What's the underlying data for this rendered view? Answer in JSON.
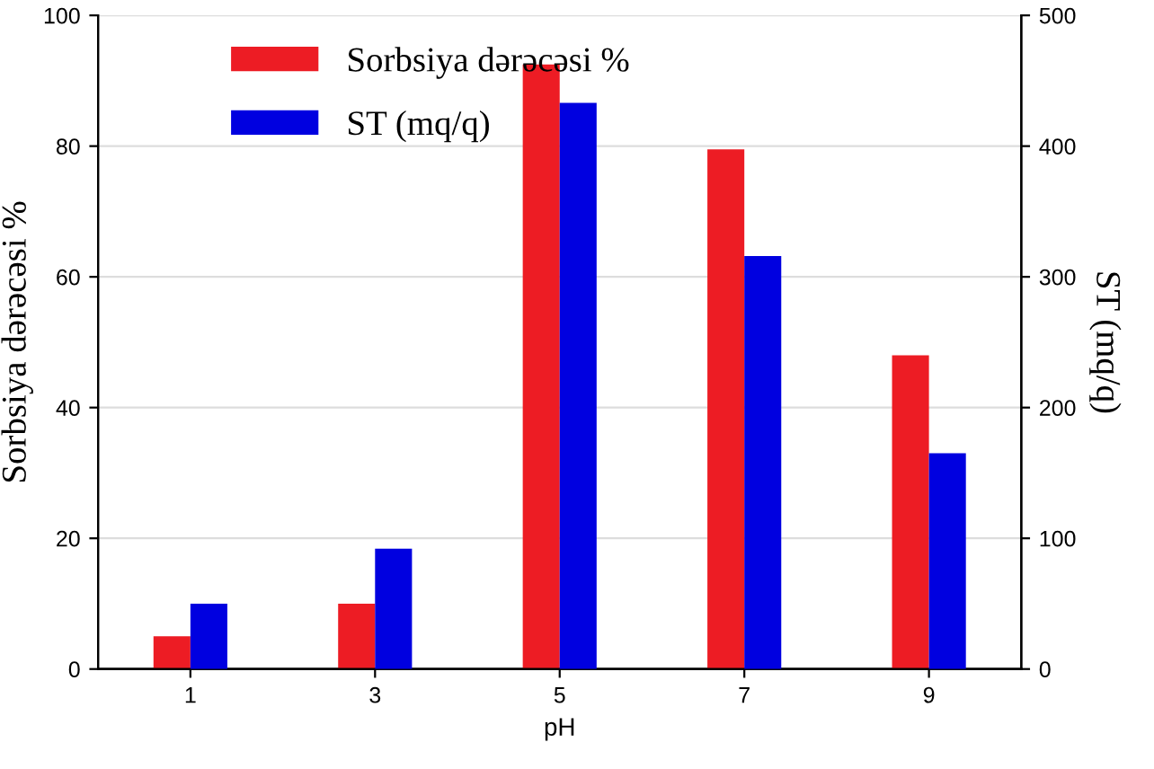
{
  "chart_data": {
    "type": "bar",
    "xlabel": "pH",
    "ylabel": "Sorbsiya dərəcəsi %",
    "y2label": "ST (mq/q)",
    "categories": [
      "1",
      "3",
      "5",
      "7",
      "9"
    ],
    "series": [
      {
        "name": "Sorbsiya dərəcəsi %",
        "color": "#ed1c24",
        "values": [
          5,
          10,
          92.5,
          79.5,
          48
        ]
      },
      {
        "name": "ST (mq/q)",
        "color": "#0000e0",
        "axis": "y2",
        "values": [
          50,
          92,
          433,
          316,
          165
        ]
      }
    ],
    "ylim": [
      0,
      100
    ],
    "yticks": [
      0,
      20,
      40,
      60,
      80,
      100
    ],
    "y2lim": [
      0,
      500
    ],
    "y2ticks": [
      0,
      100,
      200,
      300,
      400,
      500
    ],
    "grid": "y",
    "legend": "top"
  }
}
